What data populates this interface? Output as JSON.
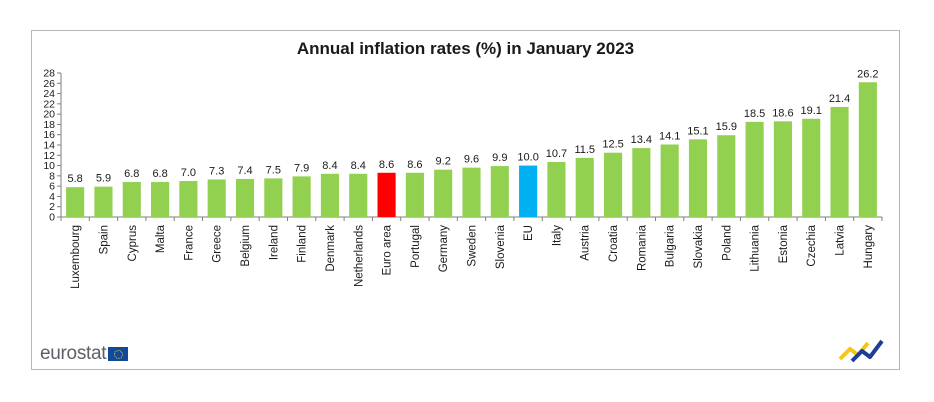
{
  "chart_data": {
    "type": "bar",
    "title": "Annual inflation rates (%) in January 2023",
    "xlabel": "",
    "ylabel": "",
    "ylim": [
      0,
      28
    ],
    "yticks": [
      0,
      2,
      4,
      6,
      8,
      10,
      12,
      14,
      16,
      18,
      20,
      22,
      24,
      26,
      28
    ],
    "categories": [
      "Luxembourg",
      "Spain",
      "Cyprus",
      "Malta",
      "France",
      "Greece",
      "Belgium",
      "Ireland",
      "Finland",
      "Denmark",
      "Netherlands",
      "Euro area",
      "Portugal",
      "Germany",
      "Sweden",
      "Slovenia",
      "EU",
      "Italy",
      "Austria",
      "Croatia",
      "Romania",
      "Bulgaria",
      "Slovakia",
      "Poland",
      "Lithuania",
      "Estonia",
      "Czechia",
      "Latvia",
      "Hungary"
    ],
    "values": [
      5.8,
      5.9,
      6.8,
      6.8,
      7.0,
      7.3,
      7.4,
      7.5,
      7.9,
      8.4,
      8.4,
      8.6,
      8.6,
      9.2,
      9.6,
      9.9,
      10.0,
      10.7,
      11.5,
      12.5,
      13.4,
      14.1,
      15.1,
      15.9,
      18.5,
      18.6,
      19.1,
      21.4,
      26.2
    ],
    "labels": [
      "5.8",
      "5.9",
      "6.8",
      "6.8",
      "7.0",
      "7.3",
      "7.4",
      "7.5",
      "7.9",
      "8.4",
      "8.4",
      "8.6",
      "8.6",
      "9.2",
      "9.6",
      "9.9",
      "10.0",
      "10.7",
      "11.5",
      "12.5",
      "13.4",
      "14.1",
      "15.1",
      "15.9",
      "18.5",
      "18.6",
      "19.1",
      "21.4",
      "26.2"
    ],
    "colors": {
      "default": "#92d050",
      "Euro area": "#ff0000",
      "EU": "#00b0f0"
    }
  },
  "branding": {
    "source": "eurostat"
  }
}
